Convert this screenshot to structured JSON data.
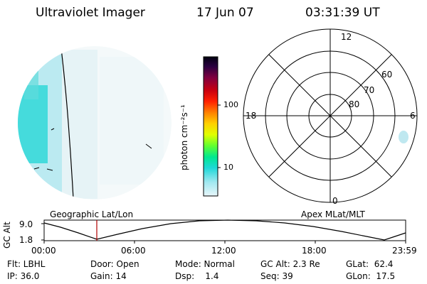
{
  "header": {
    "title": "Ultraviolet Imager",
    "date": "17 Jun 07",
    "time": "03:31:39 UT"
  },
  "colorbar": {
    "label": "photon cm⁻²s⁻¹",
    "ticks": [
      "100",
      "10"
    ],
    "colors": [
      "#000000",
      "#2a0030",
      "#6a0050",
      "#a00020",
      "#d40000",
      "#ff4000",
      "#ff9000",
      "#ffd000",
      "#c8ff00",
      "#60ff40",
      "#00e090",
      "#20d8d8",
      "#9ae8f0",
      "#e0f4f8"
    ]
  },
  "polar": {
    "mlt_labels": {
      "top": "12",
      "left": "18",
      "right": "6",
      "bottom": "0"
    },
    "lat_labels": [
      "60",
      "70",
      "80"
    ]
  },
  "timeline": {
    "left_label": "Geographic Lat/Lon",
    "right_label": "Apex MLat/MLT",
    "axis_title": "GC Alt",
    "y_ticks": [
      "9.0",
      "1.8"
    ],
    "x_ticks": [
      "00:00",
      "06:00",
      "12:00",
      "18:00",
      "23:59"
    ]
  },
  "status": {
    "flt": "Flt: LBHL",
    "ip": "IP: 36.0",
    "door": "Door: Open",
    "gain": "Gain: 14",
    "mode": "Mode: Normal",
    "dsp": "Dsp:    1.4",
    "gcalt": "GC Alt: 2.3 Re",
    "seq": "Seq: 39",
    "glat": "GLat:  62.4",
    "glon": "GLon:  17.5"
  }
}
